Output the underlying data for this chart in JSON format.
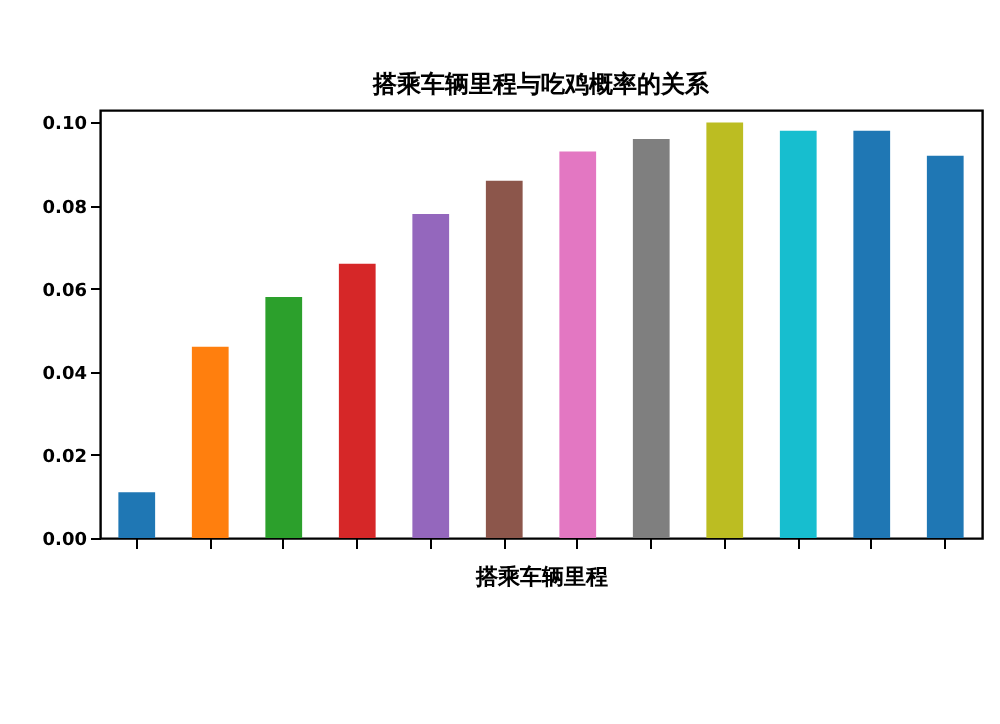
{
  "chart_data": {
    "type": "bar",
    "title": "搭乘车辆里程与吃鸡概率的关系",
    "xlabel": "搭乘车辆里程",
    "categories": [
      null,
      null,
      null,
      null,
      null,
      null,
      null,
      null,
      null,
      null,
      null,
      null
    ],
    "values": [
      0.011,
      0.046,
      0.058,
      0.066,
      0.078,
      0.086,
      0.093,
      0.096,
      0.1,
      0.098,
      0.098,
      0.092
    ],
    "colors": [
      "#1f77b4",
      "#ff7f0e",
      "#2ca02c",
      "#d62728",
      "#9467bd",
      "#8c564b",
      "#e377c2",
      "#7f7f7f",
      "#bcbd22",
      "#17becf",
      "#1f77b4",
      "#1f77b4"
    ],
    "ylim": [
      0,
      0.103
    ],
    "yticks": [
      {
        "value": 0,
        "label": "0.00"
      },
      {
        "value": 0.02,
        "label": "0.02"
      },
      {
        "value": 0.04,
        "label": "0.04"
      },
      {
        "value": 0.06,
        "label": "0.06"
      },
      {
        "value": 0.08,
        "label": "0.08"
      },
      {
        "value": 0.1,
        "label": "0.10"
      }
    ],
    "grid": false
  }
}
